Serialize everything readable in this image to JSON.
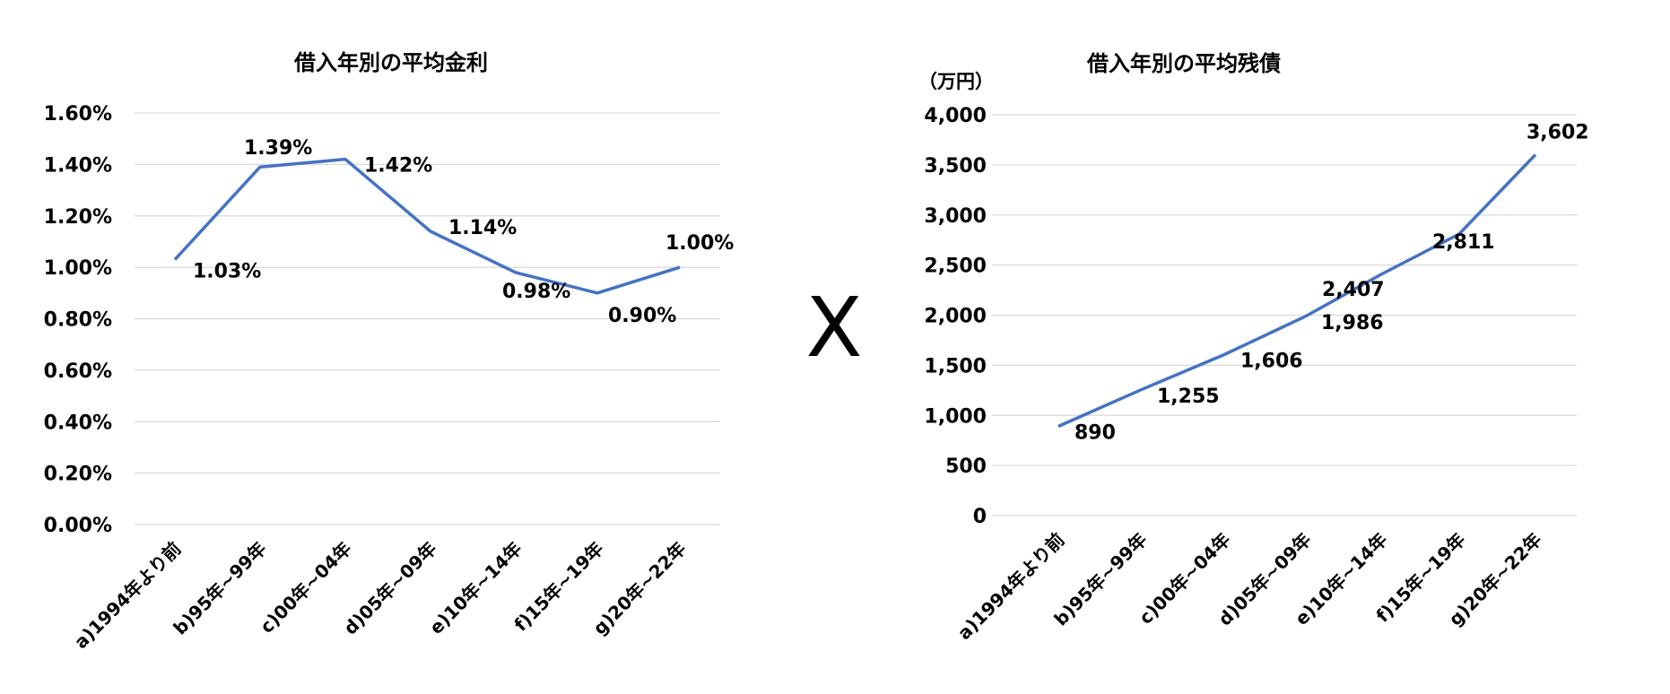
{
  "separator": "X",
  "colors": {
    "line": "#4472c4",
    "grid": "#d9d9d9",
    "text": "#000000"
  },
  "chart_data": [
    {
      "type": "line",
      "title": "借入年別の平均金利",
      "categories": [
        "a)1994年より前",
        "b)95年~99年",
        "c)00年~04年",
        "d)05年~09年",
        "e)10年~14年",
        "f)15年~19年",
        "g)20年~22年"
      ],
      "values": [
        1.03,
        1.39,
        1.42,
        1.14,
        0.98,
        0.9,
        1.0
      ],
      "data_labels": [
        "1.03%",
        "1.39%",
        "1.42%",
        "1.14%",
        "0.98%",
        "0.90%",
        "1.00%"
      ],
      "y_ticks": [
        "0.00%",
        "0.20%",
        "0.40%",
        "0.60%",
        "0.80%",
        "1.00%",
        "1.20%",
        "1.40%",
        "1.60%"
      ],
      "ylim": [
        0,
        1.6
      ],
      "ylabel": "",
      "grid": true,
      "legend": "none"
    },
    {
      "type": "line",
      "title": "借入年別の平均残債",
      "unit": "（万円）",
      "categories": [
        "a)1994年より前",
        "b)95年~99年",
        "c)00年~04年",
        "d)05年~09年",
        "e)10年~14年",
        "f)15年~19年",
        "g)20年~22年"
      ],
      "values": [
        890,
        1255,
        1606,
        1986,
        2407,
        2811,
        3602
      ],
      "data_labels": [
        "890",
        "1,255",
        "1,606",
        "1,986",
        "2,407",
        "2,811",
        "3,602"
      ],
      "y_ticks": [
        "0",
        "500",
        "1,000",
        "1,500",
        "2,000",
        "2,500",
        "3,000",
        "3,500",
        "4,000"
      ],
      "ylim": [
        0,
        4000
      ],
      "ylabel": "",
      "grid": true,
      "legend": "none"
    }
  ]
}
